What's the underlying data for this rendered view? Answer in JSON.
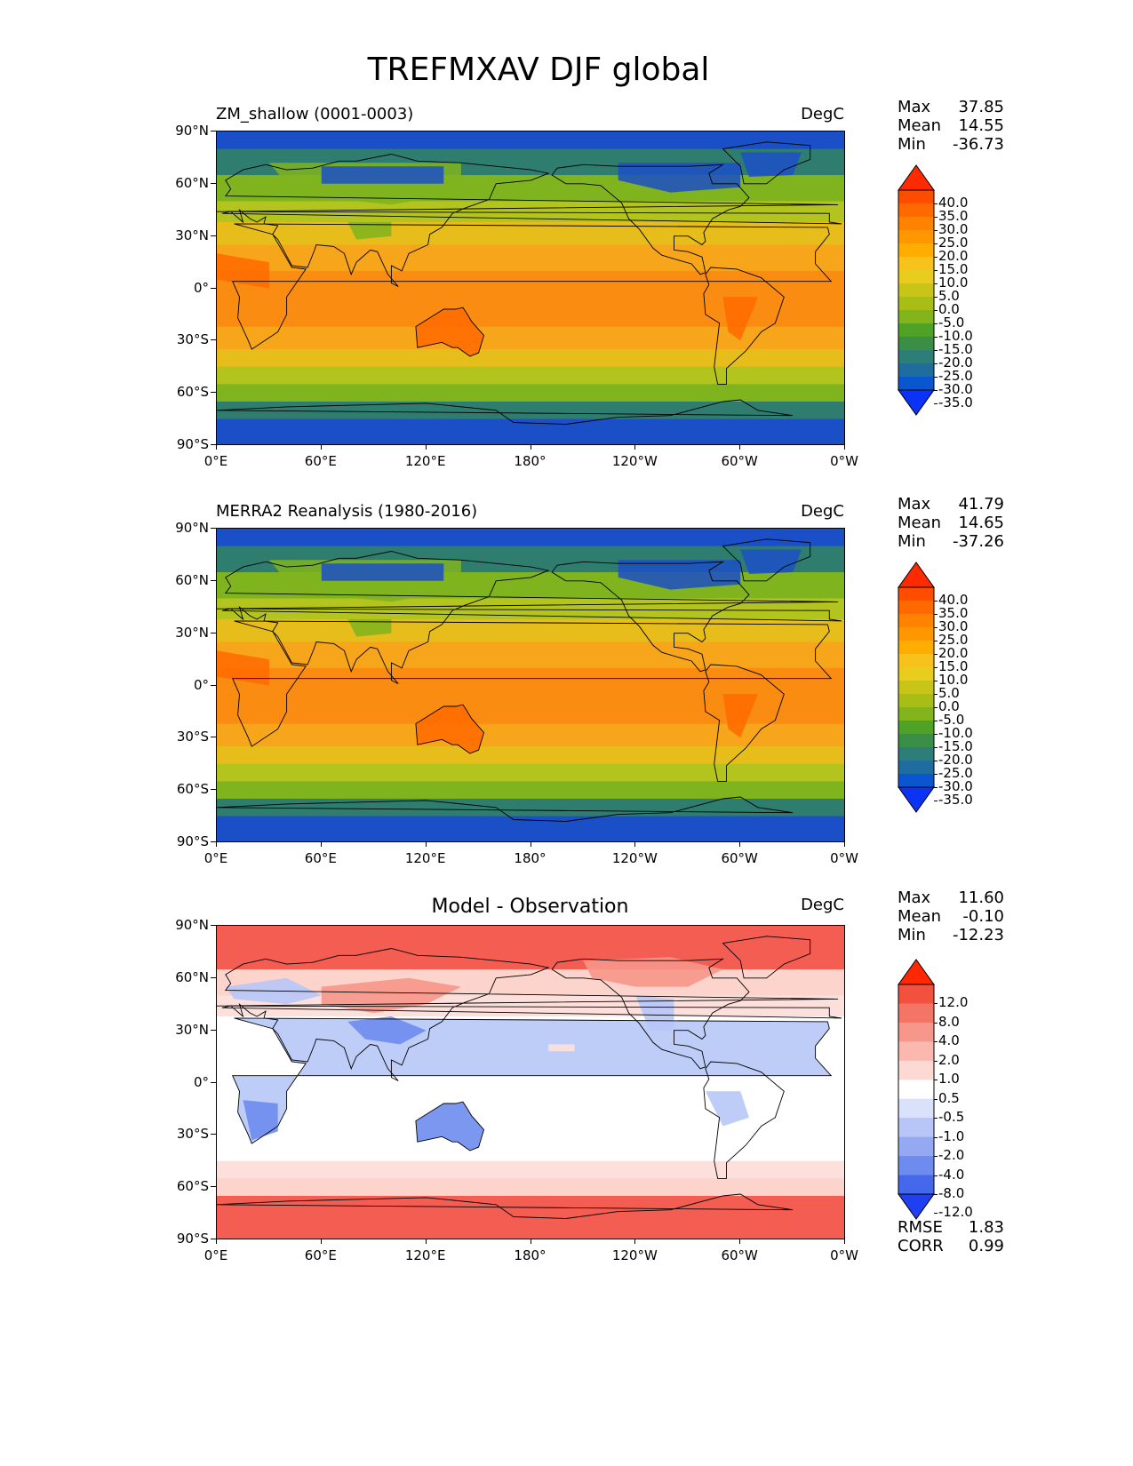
{
  "figure": {
    "title": "TREFMXAV DJF global"
  },
  "chart_data": [
    {
      "type": "heatmap",
      "projection": "cylindrical-equidistant",
      "left_title": "ZM_shallow (0001-0003)",
      "units": "DegC",
      "stats": {
        "max_label": "Max",
        "max": "37.85",
        "mean_label": "Mean",
        "mean": "14.55",
        "min_label": "Min",
        "min": "-36.73"
      },
      "lat_ticks": [
        "90°N",
        "60°N",
        "30°N",
        "0°",
        "30°S",
        "60°S",
        "90°S"
      ],
      "lon_ticks": [
        "0°E",
        "60°E",
        "120°E",
        "180°",
        "120°W",
        "60°W",
        "0°W"
      ],
      "colorbar": {
        "extend": "both",
        "levels": [
          "40.0",
          "35.0",
          "30.0",
          "25.0",
          "20.0",
          "15.0",
          "10.0",
          "5.0",
          "0.0",
          "-5.0",
          "-10.0",
          "-15.0",
          "-20.0",
          "-25.0",
          "-30.0",
          "-35.0"
        ],
        "colors": [
          "#ff2a00",
          "#ff4d00",
          "#ff6a00",
          "#ff8200",
          "#ff9800",
          "#ffad00",
          "#f8c21c",
          "#e8cd1e",
          "#c9c418",
          "#a9bd17",
          "#82b51b",
          "#4fa226",
          "#3a8e45",
          "#2d7d78",
          "#1e6d9e",
          "#0a55d0",
          "#0b33f5"
        ]
      },
      "field_colors": {
        "eq": "#fb8c12",
        "subtrop": "#f7a51a",
        "mid": "#e6bd1a",
        "cool": "#b4c41e",
        "cold": "#7fb41e",
        "polar_sea": "#2e7d6e",
        "polar_ice": "#1b4fc7"
      }
    },
    {
      "type": "heatmap",
      "projection": "cylindrical-equidistant",
      "left_title": "MERRA2 Reanalysis (1980-2016)",
      "units": "DegC",
      "stats": {
        "max_label": "Max",
        "max": "41.79",
        "mean_label": "Mean",
        "mean": "14.65",
        "min_label": "Min",
        "min": "-37.26"
      },
      "lat_ticks": [
        "90°N",
        "60°N",
        "30°N",
        "0°",
        "30°S",
        "60°S",
        "90°S"
      ],
      "lon_ticks": [
        "0°E",
        "60°E",
        "120°E",
        "180°",
        "120°W",
        "60°W",
        "0°W"
      ],
      "colorbar": {
        "extend": "both",
        "levels": [
          "40.0",
          "35.0",
          "30.0",
          "25.0",
          "20.0",
          "15.0",
          "10.0",
          "5.0",
          "0.0",
          "-5.0",
          "-10.0",
          "-15.0",
          "-20.0",
          "-25.0",
          "-30.0",
          "-35.0"
        ],
        "colors": [
          "#ff2a00",
          "#ff4d00",
          "#ff6a00",
          "#ff8200",
          "#ff9800",
          "#ffad00",
          "#f8c21c",
          "#e8cd1e",
          "#c9c418",
          "#a9bd17",
          "#82b51b",
          "#4fa226",
          "#3a8e45",
          "#2d7d78",
          "#1e6d9e",
          "#0a55d0",
          "#0b33f5"
        ]
      },
      "field_colors": {
        "eq": "#fb8c12",
        "subtrop": "#f7a51a",
        "mid": "#e6bd1a",
        "cool": "#b4c41e",
        "cold": "#7fb41e",
        "polar_sea": "#2e7d6e",
        "polar_ice": "#1b4fc7"
      }
    },
    {
      "type": "heatmap",
      "projection": "cylindrical-equidistant",
      "center_title": "Model - Observation",
      "units": "DegC",
      "stats": {
        "max_label": "Max",
        "max": "11.60",
        "mean_label": "Mean",
        "mean": "-0.10",
        "min_label": "Min",
        "min": "-12.23"
      },
      "metrics": {
        "rmse_label": "RMSE",
        "rmse": "1.83",
        "corr_label": "CORR",
        "corr": "0.99"
      },
      "lat_ticks": [
        "90°N",
        "60°N",
        "30°N",
        "0°",
        "30°S",
        "60°S",
        "90°S"
      ],
      "lon_ticks": [
        "0°E",
        "60°E",
        "120°E",
        "180°",
        "120°W",
        "60°W",
        "0°W"
      ],
      "colorbar": {
        "extend": "both",
        "levels": [
          "12.0",
          "8.0",
          "4.0",
          "2.0",
          "1.0",
          "0.5",
          "-0.5",
          "-1.0",
          "-2.0",
          "-4.0",
          "-8.0",
          "-12.0"
        ],
        "colors": [
          "#ff2800",
          "#f2523d",
          "#f47565",
          "#f7968a",
          "#fab8ae",
          "#fdd9d3",
          "#ffffff",
          "#d9e1fb",
          "#b7c6f7",
          "#94a9f2",
          "#6e8cee",
          "#4567ec",
          "#1f3ff0"
        ]
      },
      "field_colors": {
        "eq": "#ffffff",
        "subtrop": "#ffffff",
        "mid": "#ffffff",
        "cool": "#fde0db",
        "cold": "#fcd4cc",
        "polar_sea": "#f45d52",
        "polar_ice": "#f45d52",
        "pos": "#f7968a",
        "neg": "#6e8cee",
        "neg_light": "#b7c6f7"
      }
    }
  ]
}
